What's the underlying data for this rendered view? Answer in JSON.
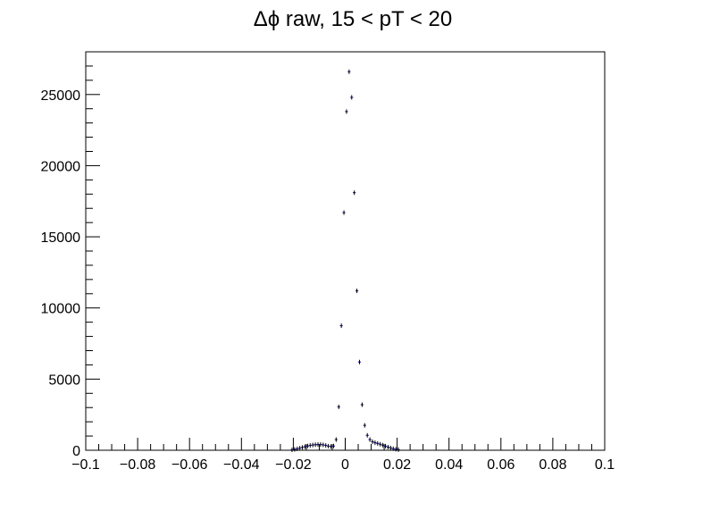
{
  "chart_data": {
    "type": "scatter",
    "title": "Δϕ raw, 15 < pT < 20",
    "xlabel": "",
    "ylabel": "",
    "xlim": [
      -0.1,
      0.1
    ],
    "ylim": [
      0,
      28000
    ],
    "x_ticks": [
      -0.1,
      -0.08,
      -0.06,
      -0.04,
      -0.02,
      0,
      0.02,
      0.04,
      0.06,
      0.08,
      0.1
    ],
    "x_tick_labels": [
      "−0.1",
      "−0.08",
      "−0.06",
      "−0.04",
      "−0.02",
      "0",
      "0.02",
      "0.04",
      "0.06",
      "0.08",
      "0.1"
    ],
    "y_ticks": [
      0,
      5000,
      10000,
      15000,
      20000,
      25000
    ],
    "y_tick_labels": [
      "0",
      "5000",
      "10000",
      "15000",
      "20000",
      "25000"
    ],
    "grid": false,
    "marker_color": "#000080",
    "series": [
      {
        "x": [
          -0.0205,
          -0.0195,
          -0.0185,
          -0.0175,
          -0.0165,
          -0.0155,
          -0.0145,
          -0.0135,
          -0.0125,
          -0.0115,
          -0.0105,
          -0.0095,
          -0.0085,
          -0.0075,
          -0.0065,
          -0.0055,
          -0.0045,
          -0.0035,
          -0.0025,
          -0.0015,
          -0.0005,
          0.0005,
          0.0015,
          0.0025,
          0.0035,
          0.0045,
          0.0055,
          0.0065,
          0.0075,
          0.0085,
          0.0095,
          0.0105,
          0.0115,
          0.0125,
          0.0135,
          0.0145,
          0.0155,
          0.0165,
          0.0175,
          0.0185,
          0.0195,
          0.0205
        ],
        "y": [
          30,
          60,
          100,
          150,
          200,
          250,
          300,
          340,
          370,
          390,
          400,
          400,
          380,
          340,
          290,
          260,
          300,
          750,
          3050,
          8750,
          16700,
          23800,
          26600,
          24800,
          18100,
          11200,
          6200,
          3200,
          1750,
          1050,
          750,
          600,
          530,
          480,
          420,
          360,
          290,
          220,
          160,
          110,
          70,
          40
        ]
      }
    ]
  }
}
